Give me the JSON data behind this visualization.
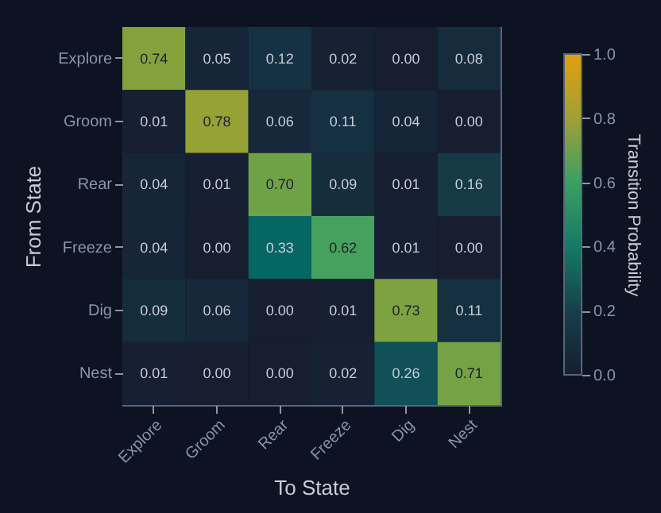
{
  "chart_data": {
    "type": "heatmap",
    "xlabel": "To State",
    "ylabel": "From State",
    "clabel": "Transition Probability",
    "categories": [
      "Explore",
      "Groom",
      "Rear",
      "Freeze",
      "Dig",
      "Nest"
    ],
    "y_categories": [
      "Explore",
      "Groom",
      "Rear",
      "Freeze",
      "Dig",
      "Nest"
    ],
    "cells": [
      [
        0.74,
        0.05,
        0.12,
        0.02,
        0.0,
        0.08
      ],
      [
        0.01,
        0.78,
        0.06,
        0.11,
        0.04,
        0.0
      ],
      [
        0.04,
        0.01,
        0.7,
        0.09,
        0.01,
        0.16
      ],
      [
        0.04,
        0.0,
        0.33,
        0.62,
        0.01,
        0.0
      ],
      [
        0.09,
        0.06,
        0.0,
        0.01,
        0.73,
        0.11
      ],
      [
        0.01,
        0.0,
        0.0,
        0.02,
        0.26,
        0.71
      ]
    ],
    "cell_labels": [
      [
        "0.74",
        "0.05",
        "0.12",
        "0.02",
        "0.00",
        "0.08"
      ],
      [
        "0.01",
        "0.78",
        "0.06",
        "0.11",
        "0.04",
        "0.00"
      ],
      [
        "0.04",
        "0.01",
        "0.70",
        "0.09",
        "0.01",
        "0.16"
      ],
      [
        "0.04",
        "0.00",
        "0.33",
        "0.62",
        "0.01",
        "0.00"
      ],
      [
        "0.09",
        "0.06",
        "0.00",
        "0.01",
        "0.73",
        "0.11"
      ],
      [
        "0.01",
        "0.00",
        "0.00",
        "0.02",
        "0.26",
        "0.71"
      ]
    ],
    "clim": [
      0,
      1
    ],
    "cticks": [
      {
        "value": 0,
        "label": "0.0"
      },
      0.2,
      0.4,
      0.6,
      0.8,
      {
        "value": 1,
        "label": "1.0"
      }
    ],
    "data_labels": true
  }
}
